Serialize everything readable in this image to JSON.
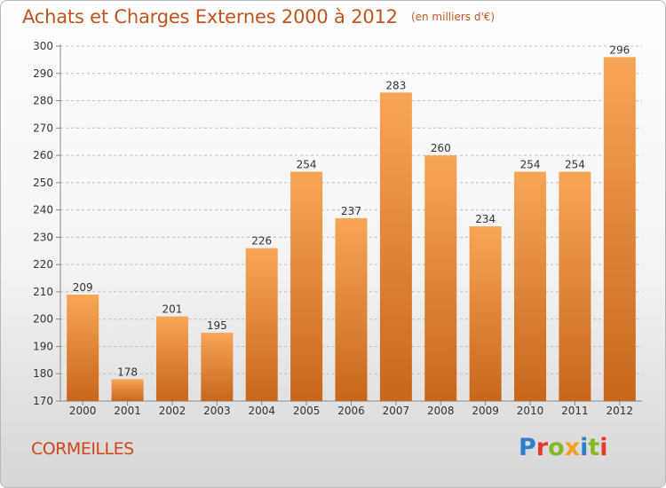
{
  "title": "Achats et Charges Externes 2000 à 2012",
  "unit": "(en milliers d'€)",
  "commune": "CORMEILLES",
  "logo": {
    "text": "Proxiti",
    "letters": [
      "P",
      "r",
      "o",
      "x",
      "i",
      "t",
      "i"
    ],
    "colors": [
      "#2c7fc8",
      "#e83a2a",
      "#86b925",
      "#f5a01e",
      "#2c7fc8",
      "#86b925",
      "#e83a2a"
    ]
  },
  "chart_data": {
    "type": "bar",
    "categories": [
      "2000",
      "2001",
      "2002",
      "2003",
      "2004",
      "2005",
      "2006",
      "2007",
      "2008",
      "2009",
      "2010",
      "2011",
      "2012"
    ],
    "values": [
      209,
      178,
      201,
      195,
      226,
      254,
      237,
      283,
      260,
      234,
      254,
      254,
      296
    ],
    "xlabel": "",
    "ylabel": "",
    "ylim": [
      170,
      300
    ],
    "yticks": [
      170,
      180,
      190,
      200,
      210,
      220,
      230,
      240,
      250,
      260,
      270,
      280,
      290,
      300
    ],
    "grid": true,
    "data_labels": true,
    "colors": {
      "bar_light": "#f7a656",
      "bar_dark": "#c8661a",
      "grid": "#bdbdbd",
      "title": "#c0541c"
    }
  }
}
